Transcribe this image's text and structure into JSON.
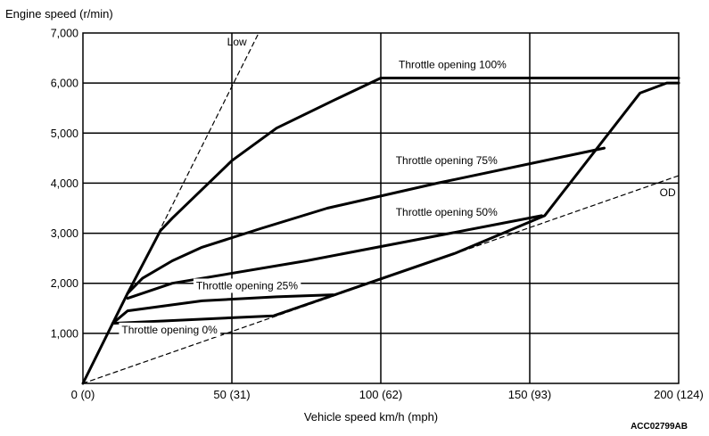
{
  "chart_data": {
    "type": "line",
    "ylabel": "Engine speed (r/min)",
    "xlabel": "Vehicle speed  km/h (mph)",
    "figure_code": "ACC02799AB",
    "xlim": [
      0,
      200
    ],
    "ylim": [
      0,
      7000
    ],
    "x_ticks": [
      {
        "value": 0,
        "label": "0 (0)"
      },
      {
        "value": 50,
        "label": "50 (31)"
      },
      {
        "value": 100,
        "label": "100 (62)"
      },
      {
        "value": 150,
        "label": "150 (93)"
      },
      {
        "value": 200,
        "label": "200 (124)"
      }
    ],
    "y_ticks": [
      {
        "value": 1000,
        "label": "1,000"
      },
      {
        "value": 2000,
        "label": "2,000"
      },
      {
        "value": 3000,
        "label": "3,000"
      },
      {
        "value": 4000,
        "label": "4,000"
      },
      {
        "value": 5000,
        "label": "5,000"
      },
      {
        "value": 6000,
        "label": "6,000"
      },
      {
        "value": 7000,
        "label": "7,000"
      }
    ],
    "grid": true,
    "series": [
      {
        "name": "Low",
        "style": "dashed",
        "points": [
          [
            0,
            0
          ],
          [
            59,
            7000
          ]
        ]
      },
      {
        "name": "OD",
        "style": "dashed",
        "points": [
          [
            0,
            0
          ],
          [
            200,
            4150
          ]
        ]
      },
      {
        "name": "Throttle opening 0%",
        "style": "solid",
        "points": [
          [
            10,
            1200
          ],
          [
            64,
            1350
          ],
          [
            125,
            2600
          ],
          [
            155,
            3350
          ],
          [
            187,
            5800
          ],
          [
            196,
            6000
          ],
          [
            200,
            6000
          ]
        ]
      },
      {
        "name": "Throttle opening 25%",
        "style": "solid",
        "points": [
          [
            10,
            1200
          ],
          [
            15,
            1450
          ],
          [
            40,
            1650
          ],
          [
            65,
            1730
          ],
          [
            84,
            1770
          ]
        ]
      },
      {
        "name": "Throttle opening 50%",
        "style": "solid",
        "points": [
          [
            15,
            1700
          ],
          [
            30,
            2000
          ],
          [
            75,
            2450
          ],
          [
            119,
            2950
          ],
          [
            154,
            3350
          ]
        ]
      },
      {
        "name": "Throttle opening 75%",
        "style": "solid",
        "points": [
          [
            15,
            1800
          ],
          [
            20,
            2100
          ],
          [
            30,
            2450
          ],
          [
            40,
            2720
          ],
          [
            60,
            3100
          ],
          [
            82,
            3500
          ],
          [
            119,
            4000
          ],
          [
            175,
            4700
          ]
        ]
      },
      {
        "name": "Throttle opening 100%",
        "style": "solid",
        "points": [
          [
            0,
            0
          ],
          [
            15,
            1800
          ],
          [
            26,
            3050
          ],
          [
            30,
            3300
          ],
          [
            50,
            4450
          ],
          [
            65,
            5100
          ],
          [
            84,
            5650
          ],
          [
            100,
            6100
          ],
          [
            200,
            6100
          ]
        ]
      }
    ],
    "annotations": [
      {
        "text": "Low",
        "x": 55,
        "y": 6750,
        "anchor": "end",
        "box": false
      },
      {
        "text": "Throttle opening 100%",
        "x": 106,
        "y": 6300,
        "anchor": "start",
        "box": false
      },
      {
        "text": "Throttle opening 75%",
        "x": 105,
        "y": 4380,
        "anchor": "start",
        "box": false
      },
      {
        "text": "Throttle opening 50%",
        "x": 105,
        "y": 3350,
        "anchor": "start",
        "box": false
      },
      {
        "text": "Throttle opening 25%",
        "x": 38,
        "y": 1880,
        "anchor": "start",
        "box": true
      },
      {
        "text": "Throttle opening 0%",
        "x": 13,
        "y": 1000,
        "anchor": "start",
        "box": true
      },
      {
        "text": "OD",
        "x": 199,
        "y": 3740,
        "anchor": "end",
        "box": false
      }
    ]
  }
}
